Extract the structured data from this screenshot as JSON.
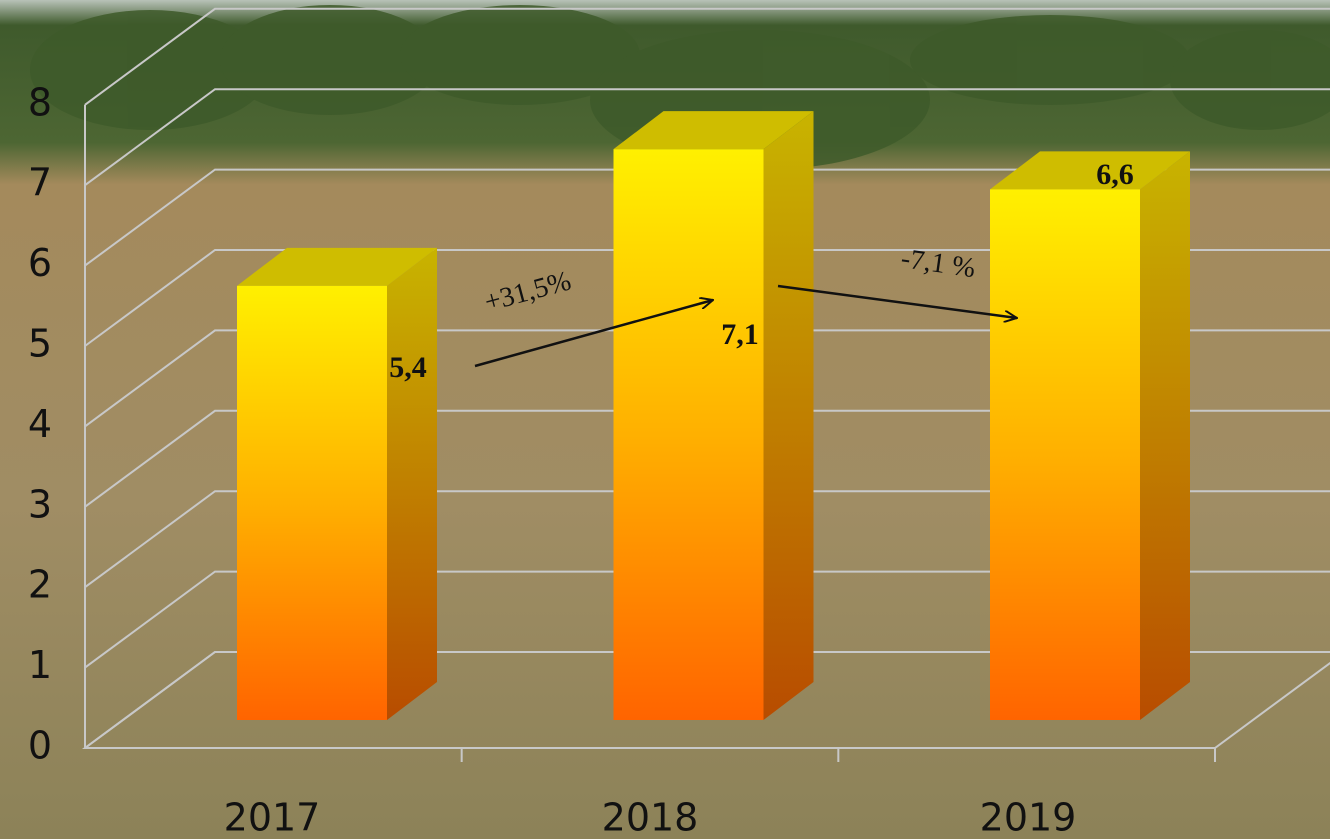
{
  "chart_data": {
    "type": "bar3d",
    "categories": [
      "2017",
      "2018",
      "2019"
    ],
    "values": [
      5.4,
      7.1,
      6.6
    ],
    "value_labels": [
      "5,4",
      "7,1",
      "6,6"
    ],
    "annotations": [
      "+31,5%",
      "-7,1 %"
    ],
    "ylim": [
      0,
      8
    ],
    "yticks": [
      0,
      1,
      2,
      3,
      4,
      5,
      6,
      7,
      8
    ],
    "grid": true
  }
}
